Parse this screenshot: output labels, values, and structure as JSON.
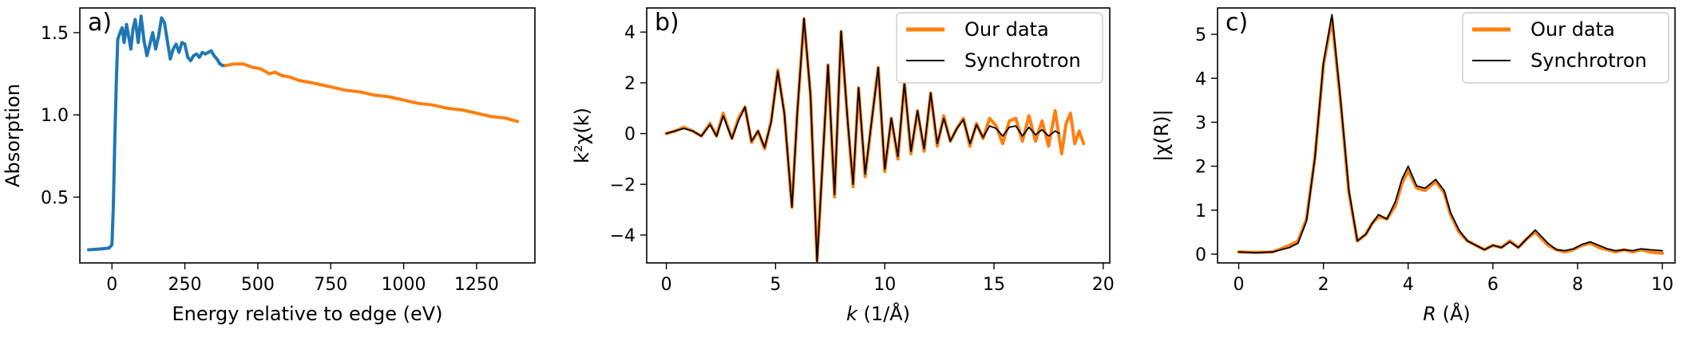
{
  "colors": {
    "blue": "#1f77b4",
    "orange": "#ff7f0e",
    "black": "#000000"
  },
  "chart_data": [
    {
      "type": "line",
      "panel_label": "a)",
      "xlabel": "Energy relative to edge (eV)",
      "ylabel": "Absorption",
      "xlim": [
        -110,
        1450
      ],
      "ylim": [
        0.1,
        1.65
      ],
      "xticks": [
        0,
        250,
        500,
        750,
        1000,
        1250
      ],
      "xtick_labels": [
        "0",
        "250",
        "500",
        "750",
        "1000",
        "1250"
      ],
      "yticks": [
        0.5,
        1.0,
        1.5
      ],
      "ytick_labels": [
        "0.5",
        "1.0",
        "1.5"
      ],
      "grid": false,
      "series": [
        {
          "color": "#1f77b4",
          "x": [
            -80,
            -40,
            -10,
            0,
            5,
            10,
            15,
            20,
            28,
            35,
            42,
            50,
            58,
            65,
            72,
            80,
            90,
            100,
            110,
            120,
            130,
            140,
            150,
            160,
            170,
            180,
            190,
            200,
            210,
            220,
            230,
            240,
            250,
            260,
            270,
            280,
            290,
            300,
            310,
            320,
            330,
            340,
            350,
            360,
            370,
            380,
            390
          ],
          "y": [
            0.18,
            0.185,
            0.19,
            0.21,
            0.45,
            0.85,
            1.2,
            1.46,
            1.5,
            1.53,
            1.44,
            1.55,
            1.47,
            1.4,
            1.52,
            1.58,
            1.44,
            1.6,
            1.45,
            1.36,
            1.43,
            1.5,
            1.4,
            1.48,
            1.59,
            1.56,
            1.45,
            1.34,
            1.4,
            1.43,
            1.38,
            1.44,
            1.43,
            1.35,
            1.33,
            1.36,
            1.37,
            1.35,
            1.38,
            1.37,
            1.38,
            1.39,
            1.36,
            1.34,
            1.31,
            1.3,
            1.3
          ]
        },
        {
          "color": "#ff7f0e",
          "x": [
            390,
            420,
            450,
            480,
            510,
            540,
            560,
            580,
            610,
            640,
            670,
            700,
            750,
            800,
            850,
            900,
            950,
            1000,
            1050,
            1100,
            1150,
            1200,
            1250,
            1300,
            1350,
            1390
          ],
          "y": [
            1.3,
            1.31,
            1.31,
            1.29,
            1.28,
            1.25,
            1.26,
            1.24,
            1.23,
            1.21,
            1.2,
            1.19,
            1.17,
            1.15,
            1.14,
            1.12,
            1.11,
            1.09,
            1.07,
            1.06,
            1.04,
            1.03,
            1.01,
            0.99,
            0.98,
            0.96
          ]
        }
      ]
    },
    {
      "type": "line",
      "panel_label": "b)",
      "xlabel": "k (1/Å)",
      "xlabel_italic_part": "k",
      "xlabel_rest": " (1/Å)",
      "ylabel": "k²χ(k)",
      "xlim": [
        -0.9,
        20.3
      ],
      "ylim": [
        -5.1,
        4.95
      ],
      "xticks": [
        0,
        5,
        10,
        15,
        20
      ],
      "xtick_labels": [
        "0",
        "5",
        "10",
        "15",
        "20"
      ],
      "yticks": [
        -4,
        -2,
        0,
        2,
        4
      ],
      "ytick_labels": [
        "−4",
        "−2",
        "0",
        "2",
        "4"
      ],
      "grid": false,
      "legend": {
        "position": "top-right",
        "entries": [
          "Our data",
          "Synchrotron"
        ]
      },
      "series": [
        {
          "name": "Our data",
          "color": "#ff7f0e",
          "x": [
            0,
            0.4,
            0.8,
            1.2,
            1.6,
            2.0,
            2.3,
            2.6,
            3.0,
            3.3,
            3.6,
            3.9,
            4.2,
            4.5,
            4.8,
            5.1,
            5.4,
            5.75,
            6.0,
            6.3,
            6.6,
            6.9,
            7.15,
            7.4,
            7.7,
            8.0,
            8.3,
            8.55,
            8.8,
            9.1,
            9.4,
            9.7,
            10.0,
            10.3,
            10.6,
            10.9,
            11.2,
            11.5,
            11.8,
            12.1,
            12.4,
            12.7,
            13.0,
            13.3,
            13.6,
            13.9,
            14.2,
            14.5,
            14.8,
            15.1,
            15.4,
            15.7,
            16.0,
            16.3,
            16.6,
            16.9,
            17.2,
            17.5,
            17.8,
            18.1,
            18.3,
            18.5,
            18.7,
            18.9,
            19.1
          ],
          "y": [
            0,
            0.1,
            0.25,
            0.1,
            -0.1,
            0.4,
            -0.1,
            0.8,
            -0.2,
            0.6,
            1.05,
            -0.35,
            0.1,
            -0.6,
            0.5,
            2.5,
            0.8,
            -2.9,
            0.9,
            4.5,
            1.5,
            -5.0,
            -1.2,
            2.7,
            -2.5,
            4.0,
            0.5,
            -2.1,
            1.8,
            -1.7,
            0.5,
            2.6,
            -1.5,
            0.6,
            -1.0,
            2.0,
            -0.8,
            0.9,
            -0.7,
            1.6,
            -0.5,
            0.7,
            -0.3,
            0.2,
            0.6,
            -0.5,
            0.4,
            -0.2,
            0.6,
            0.3,
            -0.4,
            0.5,
            0.6,
            -0.3,
            0.7,
            -0.3,
            0.5,
            -0.5,
            0.9,
            -0.8,
            0.4,
            0.8,
            -0.4,
            0.1,
            -0.4
          ]
        },
        {
          "name": "Synchrotron",
          "color": "#000000",
          "x": [
            0,
            0.4,
            0.8,
            1.2,
            1.6,
            2.0,
            2.3,
            2.6,
            3.0,
            3.3,
            3.6,
            3.9,
            4.2,
            4.5,
            4.8,
            5.1,
            5.4,
            5.75,
            6.0,
            6.3,
            6.6,
            6.9,
            7.15,
            7.4,
            7.7,
            8.0,
            8.3,
            8.55,
            8.8,
            9.1,
            9.4,
            9.7,
            10.0,
            10.3,
            10.6,
            10.9,
            11.2,
            11.5,
            11.8,
            12.1,
            12.4,
            12.7,
            13.0,
            13.3,
            13.6,
            13.9,
            14.2,
            14.5,
            14.8,
            15.1,
            15.4,
            15.7,
            16.0,
            16.3,
            16.6,
            16.9,
            17.2,
            17.5,
            17.8,
            18.0
          ],
          "y": [
            0,
            0.1,
            0.2,
            0.1,
            -0.1,
            0.35,
            -0.1,
            0.7,
            -0.2,
            0.5,
            1.05,
            -0.3,
            0.1,
            -0.55,
            0.45,
            2.45,
            0.8,
            -2.9,
            0.9,
            4.55,
            1.5,
            -5.05,
            -1.2,
            2.7,
            -2.4,
            4.05,
            0.5,
            -2.0,
            1.8,
            -1.6,
            0.5,
            2.6,
            -1.4,
            0.6,
            -0.9,
            2.0,
            -0.7,
            0.9,
            -0.6,
            1.6,
            -0.4,
            0.6,
            -0.3,
            0.2,
            0.55,
            -0.4,
            0.35,
            -0.15,
            0.3,
            0.2,
            -0.1,
            0.25,
            0.3,
            -0.1,
            0.25,
            -0.05,
            0.15,
            -0.1,
            0.1,
            0.0
          ]
        }
      ]
    },
    {
      "type": "line",
      "panel_label": "c)",
      "xlabel": "R (Å)",
      "xlabel_italic_part": "R",
      "xlabel_rest": " (Å)",
      "ylabel": "|χ(R)|",
      "xlim": [
        -0.5,
        10.3
      ],
      "ylim": [
        -0.2,
        5.6
      ],
      "xticks": [
        0,
        2,
        4,
        6,
        8,
        10
      ],
      "xtick_labels": [
        "0",
        "2",
        "4",
        "6",
        "8",
        "10"
      ],
      "yticks": [
        0,
        1,
        2,
        3,
        4,
        5
      ],
      "ytick_labels": [
        "0",
        "1",
        "2",
        "3",
        "4",
        "5"
      ],
      "grid": false,
      "legend": {
        "position": "top-right",
        "entries": [
          "Our data",
          "Synchrotron"
        ]
      },
      "series": [
        {
          "name": "Our data",
          "color": "#ff7f0e",
          "x": [
            0,
            0.4,
            0.8,
            1.0,
            1.2,
            1.4,
            1.6,
            1.8,
            2.0,
            2.2,
            2.4,
            2.6,
            2.8,
            3.0,
            3.15,
            3.3,
            3.5,
            3.7,
            3.85,
            4.0,
            4.2,
            4.4,
            4.65,
            4.85,
            5.0,
            5.2,
            5.4,
            5.6,
            5.8,
            6.0,
            6.2,
            6.4,
            6.6,
            6.8,
            7.0,
            7.1,
            7.3,
            7.5,
            7.7,
            7.9,
            8.1,
            8.3,
            8.5,
            8.7,
            8.9,
            9.1,
            9.3,
            9.5,
            9.7,
            10.0
          ],
          "y": [
            0.05,
            0.04,
            0.05,
            0.12,
            0.2,
            0.3,
            0.8,
            2.2,
            4.3,
            5.35,
            3.5,
            1.4,
            0.3,
            0.45,
            0.7,
            0.85,
            0.8,
            1.1,
            1.6,
            1.9,
            1.5,
            1.45,
            1.65,
            1.4,
            0.9,
            0.5,
            0.3,
            0.2,
            0.1,
            0.2,
            0.15,
            0.3,
            0.15,
            0.35,
            0.5,
            0.4,
            0.2,
            0.1,
            0.05,
            0.1,
            0.2,
            0.25,
            0.15,
            0.1,
            0.05,
            0.1,
            0.05,
            0.1,
            0.05,
            0.02
          ]
        },
        {
          "name": "Synchrotron",
          "color": "#000000",
          "x": [
            0,
            0.4,
            0.8,
            1.0,
            1.2,
            1.4,
            1.6,
            1.8,
            2.0,
            2.2,
            2.4,
            2.6,
            2.8,
            3.0,
            3.15,
            3.3,
            3.5,
            3.7,
            3.85,
            4.0,
            4.2,
            4.4,
            4.65,
            4.85,
            5.0,
            5.2,
            5.4,
            5.6,
            5.8,
            6.0,
            6.2,
            6.4,
            6.6,
            6.8,
            7.0,
            7.1,
            7.3,
            7.5,
            7.7,
            7.9,
            8.1,
            8.3,
            8.5,
            8.7,
            8.9,
            9.1,
            9.3,
            9.5,
            9.7,
            10.0
          ],
          "y": [
            0.05,
            0.03,
            0.05,
            0.1,
            0.15,
            0.25,
            0.75,
            2.2,
            4.35,
            5.45,
            3.55,
            1.45,
            0.3,
            0.45,
            0.7,
            0.9,
            0.8,
            1.2,
            1.7,
            2.0,
            1.55,
            1.5,
            1.7,
            1.45,
            0.95,
            0.55,
            0.3,
            0.2,
            0.1,
            0.2,
            0.15,
            0.28,
            0.15,
            0.35,
            0.55,
            0.45,
            0.25,
            0.1,
            0.08,
            0.12,
            0.22,
            0.28,
            0.2,
            0.12,
            0.08,
            0.1,
            0.08,
            0.12,
            0.1,
            0.08
          ]
        }
      ]
    }
  ]
}
